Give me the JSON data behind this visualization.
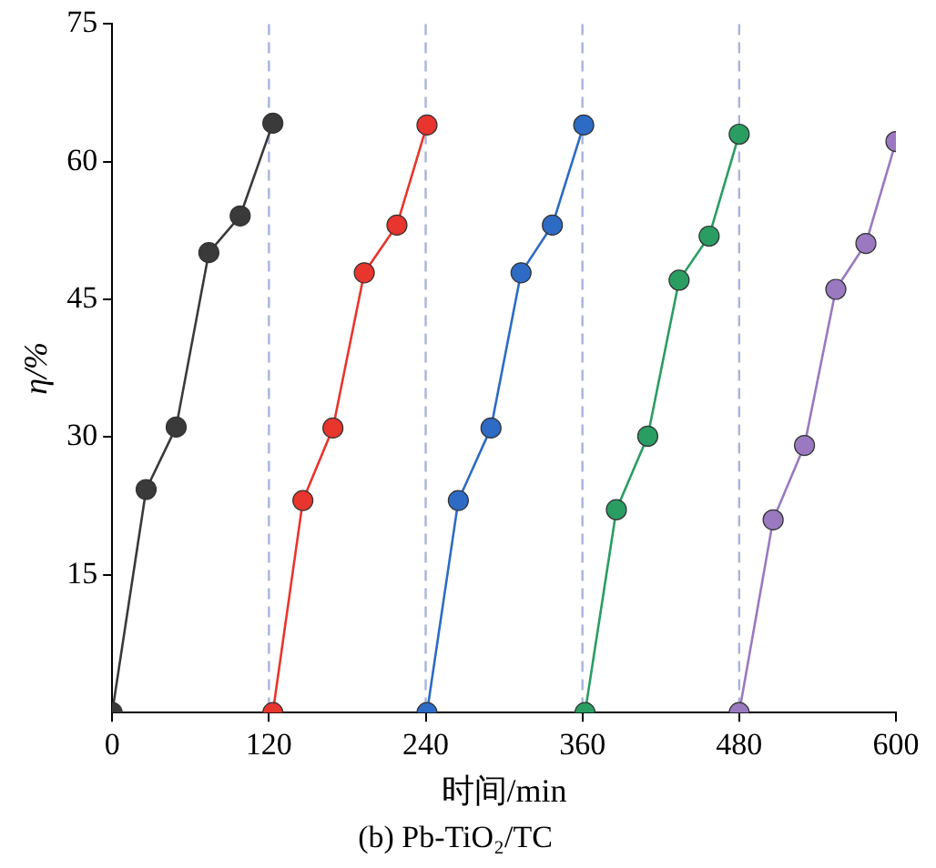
{
  "chart_data": {
    "type": "line",
    "title": "(b) Pb-TiO₂/TC",
    "xlabel": "时间/min",
    "ylabel": "η/%",
    "xlim": [
      0,
      600
    ],
    "xticks": [
      0,
      120,
      240,
      360,
      480,
      600
    ],
    "ylim": [
      0,
      75
    ],
    "yticks": [
      15,
      30,
      45,
      60,
      75
    ],
    "grid": false,
    "legend": false,
    "marker": "circle",
    "line_style": "solid",
    "series": [
      {
        "color": "#3a3a3a",
        "x": [
          0,
          26,
          49,
          74,
          98,
          123
        ],
        "values": [
          0,
          24.3,
          31.1,
          50.1,
          54.1,
          64.2
        ]
      },
      {
        "color": "#e8352e",
        "x": [
          123,
          146,
          169,
          193,
          218,
          241
        ],
        "values": [
          0,
          23.1,
          31,
          47.9,
          53.1,
          64
        ]
      },
      {
        "color": "#2d6bc4",
        "x": [
          241,
          265,
          290,
          313,
          337,
          361
        ],
        "values": [
          0,
          23.1,
          31,
          47.9,
          53.1,
          64
        ]
      },
      {
        "color": "#2a9d63",
        "x": [
          362,
          386,
          410,
          434,
          457,
          480
        ],
        "values": [
          0,
          22.1,
          30.1,
          47.1,
          51.9,
          63
        ]
      },
      {
        "color": "#9a79c0",
        "x": [
          480,
          506,
          530,
          554,
          577,
          600
        ],
        "values": [
          0,
          21,
          29.1,
          46.1,
          51.1,
          62.2
        ]
      }
    ],
    "ref_lines": [
      {
        "axis": "x",
        "value": 120,
        "color": "#a9b3dc",
        "line_style": "dashed"
      },
      {
        "axis": "x",
        "value": 240,
        "color": "#a9b3dc",
        "line_style": "dashed"
      },
      {
        "axis": "x",
        "value": 360,
        "color": "#a9b3dc",
        "line_style": "dashed"
      },
      {
        "axis": "x",
        "value": 480,
        "color": "#a9b3dc",
        "line_style": "dashed"
      }
    ]
  }
}
